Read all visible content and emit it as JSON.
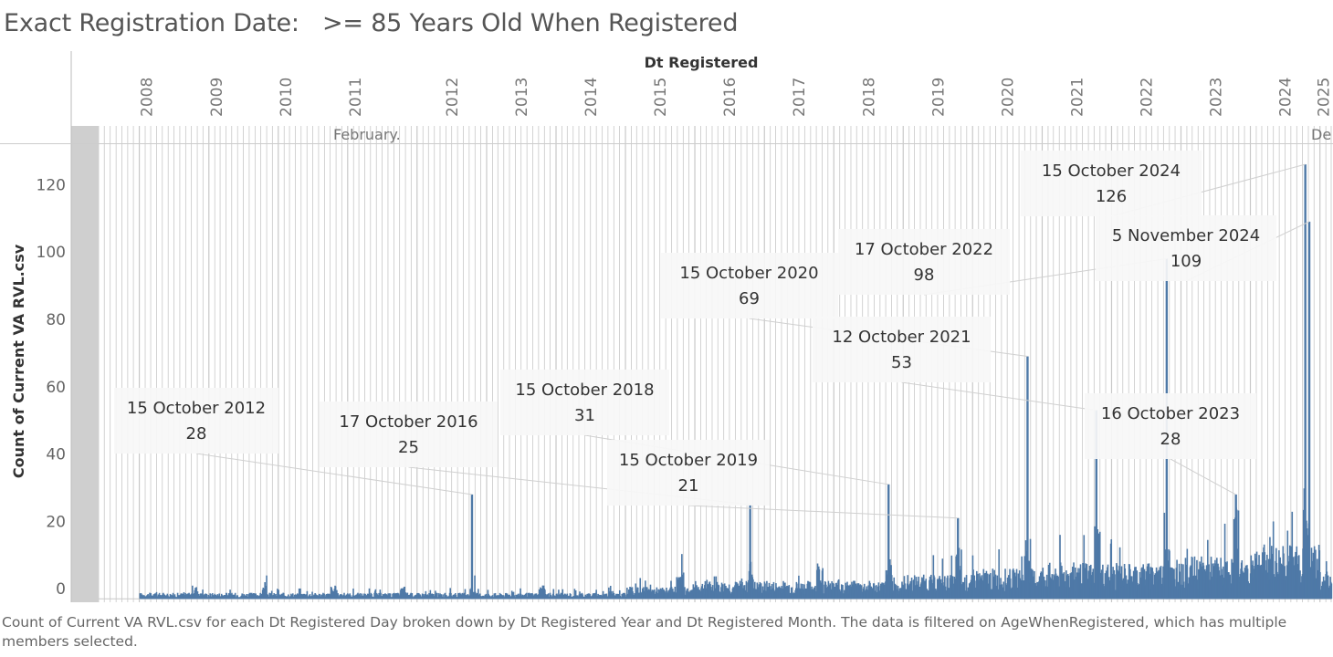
{
  "title": "Exact Registration Date:   >= 85 Years Old When Registered",
  "caption": "Count of Current VA RVL.csv for each Dt Registered Day broken down by Dt Registered Year and Dt Registered Month. The data is filtered on AgeWhenRegistered, which has multiple members selected.",
  "colors": {
    "bar": "#4e79a7",
    "gridline": "#c8c8c8",
    "callout_bg": "#f7f7f7"
  },
  "chart_data": {
    "type": "bar",
    "x_header": "Dt Registered",
    "ylabel": "Count of Current VA RVL.csv",
    "ylim": [
      -4,
      132
    ],
    "y_ticks": [
      0,
      20,
      40,
      60,
      80,
      100,
      120
    ],
    "xlim": [
      "2007-06-01",
      "2025-03-01"
    ],
    "year_labels": [
      "2008",
      "2009",
      "2010",
      "2011",
      "2012",
      "2013",
      "2014",
      "2015",
      "2016",
      "2017",
      "2018",
      "2019",
      "2020",
      "2021",
      "2022",
      "2023",
      "2024",
      "2025"
    ],
    "month_row_labels": [
      "February.",
      "De"
    ],
    "peaks": [
      {
        "date": "2012-10-15",
        "label": "15 October 2012",
        "value": 28
      },
      {
        "date": "2016-10-17",
        "label": "17 October 2016",
        "value": 25
      },
      {
        "date": "2018-10-15",
        "label": "15 October 2018",
        "value": 31
      },
      {
        "date": "2019-10-15",
        "label": "15 October 2019",
        "value": 21
      },
      {
        "date": "2020-10-15",
        "label": "15  October  2020",
        "value": 69
      },
      {
        "date": "2021-10-12",
        "label": "12 October  2021",
        "value": 53
      },
      {
        "date": "2022-10-17",
        "label": "17 October 2022",
        "value": 98
      },
      {
        "date": "2023-10-16",
        "label": "16 October 2023",
        "value": 28
      },
      {
        "date": "2024-10-15",
        "label": "15 October 2024",
        "value": 126
      },
      {
        "date": "2024-11-05",
        "label": "5 November 2024",
        "value": 109
      }
    ],
    "baseline_by_year": [
      {
        "year": 2008,
        "level": 1
      },
      {
        "year": 2009,
        "level": 1
      },
      {
        "year": 2010,
        "level": 1
      },
      {
        "year": 2011,
        "level": 1
      },
      {
        "year": 2012,
        "level": 1
      },
      {
        "year": 2013,
        "level": 1
      },
      {
        "year": 2014,
        "level": 1
      },
      {
        "year": 2015,
        "level": 2
      },
      {
        "year": 2016,
        "level": 3
      },
      {
        "year": 2017,
        "level": 3
      },
      {
        "year": 2018,
        "level": 3
      },
      {
        "year": 2019,
        "level": 4
      },
      {
        "year": 2020,
        "level": 5
      },
      {
        "year": 2021,
        "level": 6
      },
      {
        "year": 2022,
        "level": 6
      },
      {
        "year": 2023,
        "level": 7
      },
      {
        "year": 2024,
        "level": 9
      },
      {
        "year": 2025,
        "level": 4
      }
    ],
    "grid": true
  }
}
